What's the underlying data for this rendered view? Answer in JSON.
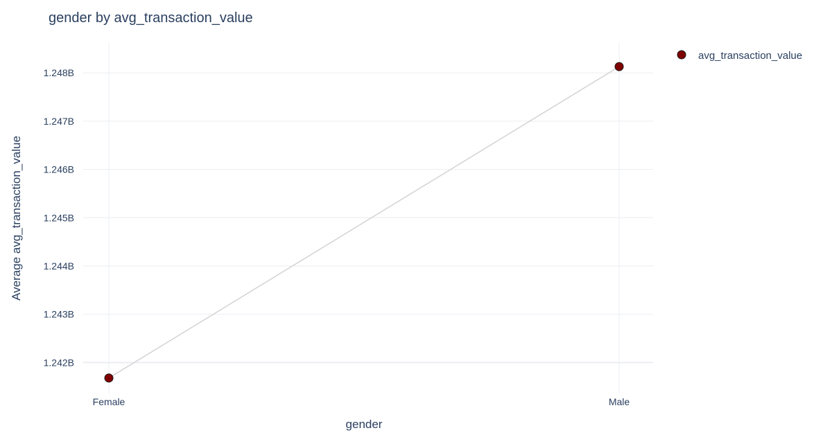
{
  "chart_data": {
    "type": "line",
    "title": "gender by avg_transaction_value",
    "xlabel": "gender",
    "ylabel": "Average avg_transaction_value",
    "categories": [
      "Female",
      "Male"
    ],
    "series": [
      {
        "name": "avg_transaction_value",
        "values": [
          1241680000,
          1248130000
        ]
      }
    ],
    "ylim": [
      1241360000,
      1248620000
    ],
    "yticks": [
      1242000000,
      1243000000,
      1244000000,
      1245000000,
      1246000000,
      1247000000,
      1248000000
    ],
    "ytick_labels": [
      "1.242B",
      "1.243B",
      "1.244B",
      "1.245B",
      "1.246B",
      "1.247B",
      "1.248B"
    ],
    "grid": true,
    "legend_position": "top-right",
    "colors": {
      "marker_fill": "#7f0000",
      "marker_edge": "#1a1a1a",
      "line": "#d3d3d3",
      "grid": "#ebeef3",
      "text": "#2a3f5f"
    }
  }
}
